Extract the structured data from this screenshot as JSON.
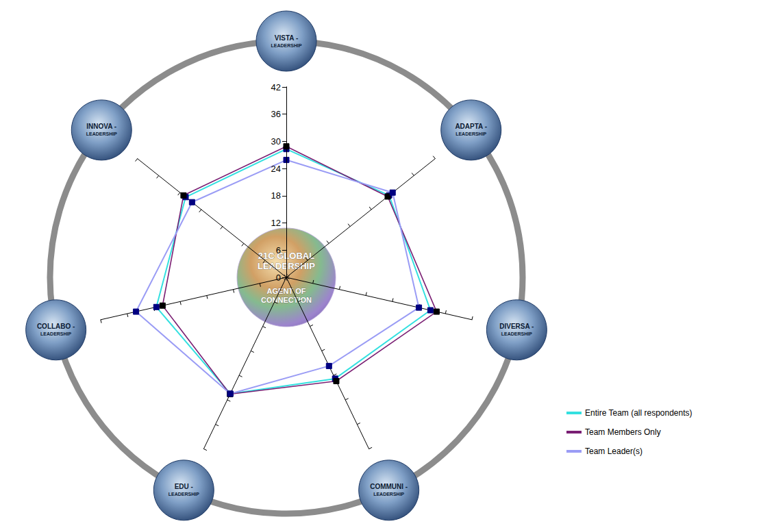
{
  "chart_data": {
    "type": "radar",
    "categories": [
      "VISTA - LEADERSHIP",
      "ADAPTA - LEADERSHIP",
      "DIVERSA - LEADERSHIP",
      "COMMUNI - LEADERSHIP",
      "EDU - LEADERSHIP",
      "COLLABO - LEADERSHIP",
      "INNOVA - LEADERSHIP"
    ],
    "center_label": [
      "21C GLOBAL LEADERSHIP",
      "AGENT OF CONNECTION"
    ],
    "ylim": [
      0,
      42
    ],
    "yticks": [
      0,
      6,
      12,
      18,
      24,
      30,
      36,
      42
    ],
    "grid": false,
    "legend": "right",
    "marker": "square",
    "series": [
      {
        "name": "Entire Team (all respondents)",
        "color": "#33e0e0",
        "values": [
          28.3,
          29,
          32.6,
          24.8,
          28.5,
          29.4,
          28.4
        ]
      },
      {
        "name": "Team Members Only",
        "color": "#7a1f73",
        "values": [
          28.9,
          28.6,
          34,
          25.4,
          28.6,
          28,
          29
        ]
      },
      {
        "name": "Team Leader(s)",
        "color": "#9a9cf5",
        "values": [
          25.9,
          30,
          30,
          21.7,
          28.5,
          34,
          26.6
        ]
      }
    ]
  }
}
